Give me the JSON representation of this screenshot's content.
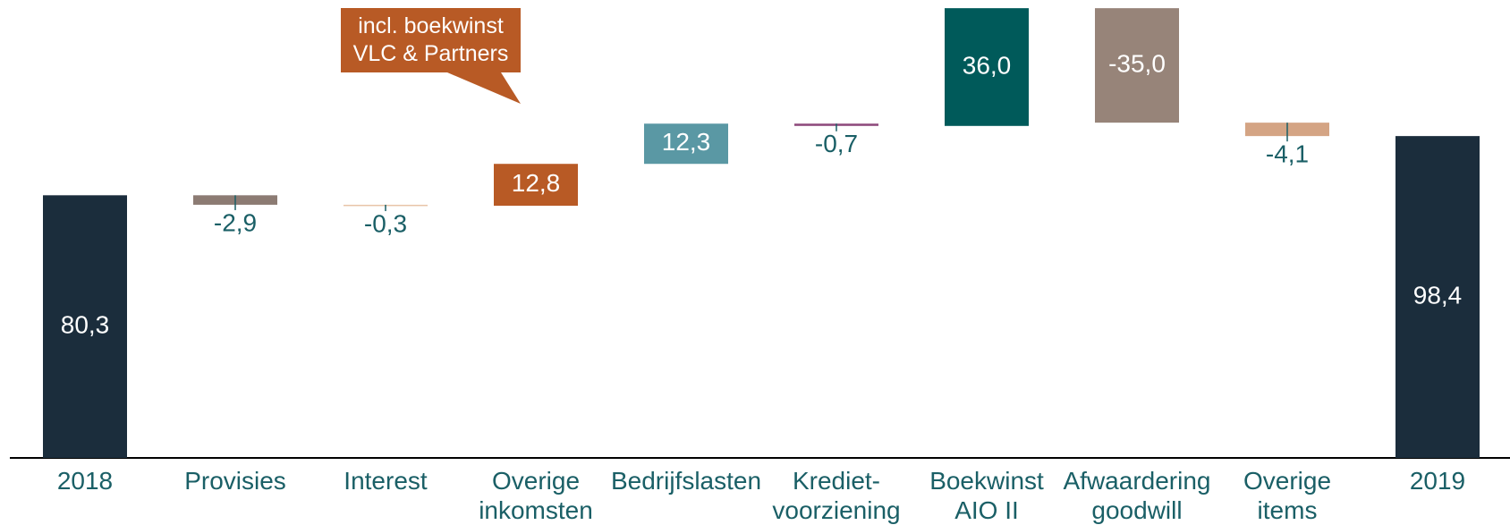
{
  "chart_data": {
    "type": "waterfall",
    "annotation": "incl. boekwinst\nVLC & Partners",
    "categories": [
      "2018",
      "Provisies",
      "Interest",
      "Overige\ninkomsten",
      "Bedrijfslasten",
      "Krediet-\nvoorziening",
      "Boekwinst\nAIO II",
      "Afwaardering\ngoodwill",
      "Overige\nitems",
      "2019"
    ],
    "values": [
      80.3,
      -2.9,
      -0.3,
      12.8,
      12.3,
      -0.7,
      36.0,
      -35.0,
      -4.1,
      98.4
    ],
    "value_labels": [
      "80,3",
      "-2,9",
      "-0,3",
      "12,8",
      "12,3",
      "-0,7",
      "36,0",
      "-35,0",
      "-4,1",
      "98,4"
    ],
    "measure": [
      "absolute",
      "relative",
      "relative",
      "relative",
      "relative",
      "relative",
      "relative",
      "relative",
      "relative",
      "absolute"
    ],
    "colors": [
      "#1b2d3c",
      "#8c7b73",
      "#e8c4a8",
      "#b85a25",
      "#5a98a4",
      "#8e4a7c",
      "#005a5a",
      "#978479",
      "#d4a484",
      "#1b2d3c"
    ],
    "ylim": [
      0,
      140
    ]
  }
}
